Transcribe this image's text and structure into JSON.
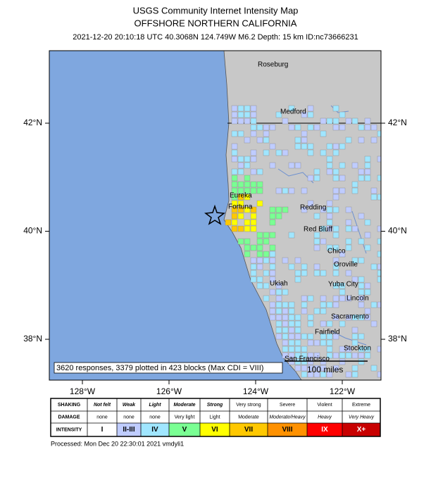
{
  "header": {
    "title": "USGS Community Internet Intensity Map",
    "subtitle": "OFFSHORE NORTHERN CALIFORNIA",
    "event": "2021-12-20 20:10:18 UTC 40.3068N 124.749W M6.2 Depth: 15 km ID:nc73666231"
  },
  "map": {
    "lat_ticks": [
      {
        "value": 42,
        "label": "42°N"
      },
      {
        "value": 40,
        "label": "40°N"
      },
      {
        "value": 38,
        "label": "38°N"
      }
    ],
    "lon_ticks": [
      {
        "value": -128,
        "label": "128°W"
      },
      {
        "value": -126,
        "label": "126°W"
      },
      {
        "value": -124,
        "label": "124°W"
      },
      {
        "value": -122,
        "label": "122°W"
      }
    ],
    "cities": [
      "Roseburg",
      "Medford",
      "Eureka",
      "Fortuna",
      "Redding",
      "Red Bluff",
      "Chico",
      "Oroville",
      "Ukiah",
      "Yuba City",
      "Lincoln",
      "Sacramento",
      "Fairfield",
      "Stockton",
      "San Francisco"
    ],
    "summary": "3620 responses, 3379 plotted in 423 blocks (Max CDI = VIII)",
    "scale": "100 miles"
  },
  "legend": {
    "row_labels": [
      "SHAKING",
      "DAMAGE",
      "INTENSITY"
    ],
    "shaking": [
      "Not felt",
      "Weak",
      "Light",
      "Moderate",
      "Strong",
      "Very strong",
      "Severe",
      "Violent",
      "Extreme"
    ],
    "damage": [
      "none",
      "none",
      "none",
      "Very light",
      "Light",
      "Moderate",
      "Moderate/Heavy",
      "Heavy",
      "Very Heavy"
    ],
    "intensity": [
      "I",
      "II-III",
      "IV",
      "V",
      "VI",
      "VII",
      "VIII",
      "IX",
      "X+"
    ],
    "colors": [
      "#ffffff",
      "#bfccff",
      "#a0e6ff",
      "#7aff93",
      "#ffff00",
      "#ffc800",
      "#ff9100",
      "#ff0000",
      "#c80000"
    ]
  },
  "footer": "Processed: Mon Dec 20 22:30:01 2021 vmdyli1"
}
